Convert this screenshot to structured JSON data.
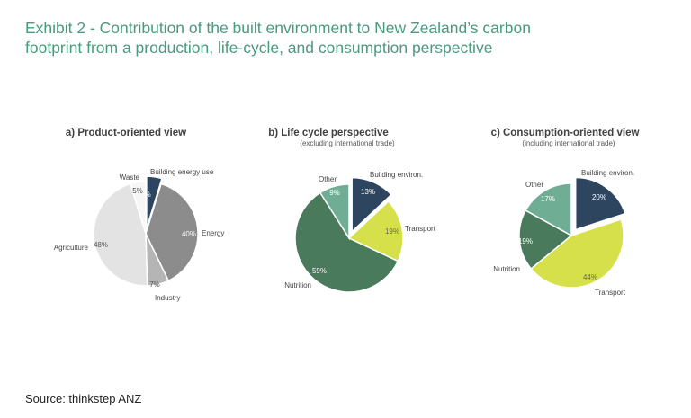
{
  "title": {
    "line1": "Exhibit 2 - Contribution of the built environment to New Zealand’s carbon",
    "line2": "footprint from a production, life-cycle, and consumption perspective"
  },
  "source": "Source: thinkstep ANZ",
  "chart_data": [
    {
      "type": "pie",
      "title": "a) Product-oriented view",
      "subtitle": "",
      "slices": [
        {
          "label": "Building energy use",
          "value": 5,
          "pct_label": "5%",
          "color": "#2e4560",
          "text_color": "#ffffff",
          "exploded": true
        },
        {
          "label": "Energy",
          "value": 40,
          "pct_label": "40%",
          "color": "#8c8c8c",
          "text_color": "#ffffff",
          "exploded": false
        },
        {
          "label": "Industry",
          "value": 7,
          "pct_label": "7%",
          "color": "#b5b5b5",
          "text_color": "#555555",
          "exploded": false
        },
        {
          "label": "Agriculture",
          "value": 48,
          "pct_label": "48%",
          "color": "#e3e3e3",
          "text_color": "#555555",
          "exploded": false
        },
        {
          "label": "Waste",
          "value": 5,
          "pct_label": "5%",
          "color": "#f6f6f6",
          "text_color": "#444444",
          "exploded": false
        }
      ]
    },
    {
      "type": "pie",
      "title": "b) Life cycle perspective",
      "subtitle": "(excluding international trade)",
      "slices": [
        {
          "label": "Building environ.",
          "value": 13,
          "pct_label": "13%",
          "color": "#2e4560",
          "text_color": "#ffffff",
          "exploded": true
        },
        {
          "label": "Transport",
          "value": 19,
          "pct_label": "19%",
          "color": "#d6e04a",
          "text_color": "#666666",
          "exploded": false
        },
        {
          "label": "Nutrition",
          "value": 59,
          "pct_label": "59%",
          "color": "#497a5c",
          "text_color": "#ffffff",
          "exploded": false
        },
        {
          "label": "Other",
          "value": 9,
          "pct_label": "9%",
          "color": "#6fae95",
          "text_color": "#ffffff",
          "exploded": false
        }
      ]
    },
    {
      "type": "pie",
      "title": "c) Consumption-oriented view",
      "subtitle": "(including international trade)",
      "slices": [
        {
          "label": "Building environ.",
          "value": 20,
          "pct_label": "20%",
          "color": "#2e4560",
          "text_color": "#ffffff",
          "exploded": true
        },
        {
          "label": "Transport",
          "value": 44,
          "pct_label": "44%",
          "color": "#d6e04a",
          "text_color": "#666666",
          "exploded": false
        },
        {
          "label": "Nutrition",
          "value": 19,
          "pct_label": "19%",
          "color": "#497a5c",
          "text_color": "#ffffff",
          "exploded": false
        },
        {
          "label": "Other",
          "value": 17,
          "pct_label": "17%",
          "color": "#6fae95",
          "text_color": "#ffffff",
          "exploded": false
        }
      ]
    }
  ]
}
